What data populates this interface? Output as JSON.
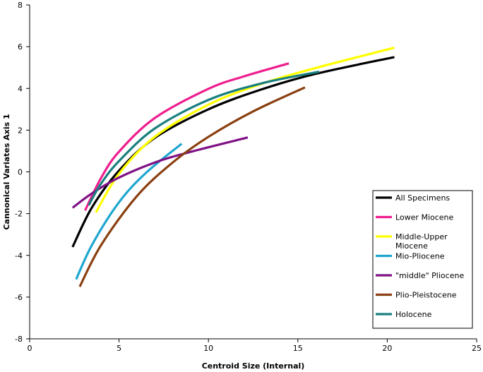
{
  "chart_data": {
    "type": "line",
    "xlabel": "Centroid Size (Internal)",
    "ylabel": "Cannonical Variates Axis 1",
    "xlim": [
      0,
      25
    ],
    "ylim": [
      -8,
      8
    ],
    "x_ticks": [
      "0",
      "5",
      "10",
      "15",
      "20",
      "25"
    ],
    "y_ticks": [
      "-8",
      "-6",
      "-4",
      "-2",
      "0",
      "2",
      "4",
      "6",
      "8"
    ],
    "grid": false,
    "legend_position": "bottom-right",
    "series": [
      {
        "name": "All Specimens",
        "color": "#000000",
        "x": [
          2.4,
          3.5,
          5,
          7,
          10,
          13,
          16,
          20.4
        ],
        "y": [
          -3.6,
          -1.68,
          0.06,
          1.63,
          3.0,
          3.96,
          4.7,
          5.5
        ]
      },
      {
        "name": "Lower Miocene",
        "color": "#ee1e8e",
        "x": [
          3.1,
          4,
          5,
          7,
          10,
          12,
          14.5
        ],
        "y": [
          -1.85,
          -0.28,
          0.97,
          2.58,
          3.98,
          4.58,
          5.2
        ]
      },
      {
        "name": "Middle-Upper\nMiocene",
        "color": "#ffff00",
        "x": [
          3.7,
          5,
          7,
          10,
          13,
          16,
          20.4
        ],
        "y": [
          -1.95,
          -0.08,
          1.68,
          3.22,
          4.23,
          4.98,
          5.95
        ]
      },
      {
        "name": "Mio-Pliocene",
        "color": "#1ea6cf",
        "x": [
          2.6,
          3.5,
          5,
          6.5,
          8.5
        ],
        "y": [
          -5.15,
          -3.48,
          -1.45,
          -0.05,
          1.35
        ]
      },
      {
        "name": "\"middle\" Pliocene",
        "color": "#7f1185",
        "x": [
          2.4,
          3.5,
          5,
          7,
          9,
          12.2
        ],
        "y": [
          -1.72,
          -1.02,
          -0.27,
          0.45,
          0.96,
          1.65
        ]
      },
      {
        "name": "Plio-Pleistocene",
        "color": "#8a3f10",
        "x": [
          2.8,
          4,
          6,
          8,
          10,
          12.5,
          15.4
        ],
        "y": [
          -5.5,
          -3.5,
          -1.16,
          0.45,
          1.68,
          2.9,
          4.05
        ]
      },
      {
        "name": "Holocene",
        "color": "#1a7f7f",
        "x": [
          3.3,
          4,
          5,
          7,
          10,
          13,
          16.2
        ],
        "y": [
          -1.6,
          -0.55,
          0.52,
          2.08,
          3.45,
          4.25,
          4.8
        ]
      }
    ]
  }
}
